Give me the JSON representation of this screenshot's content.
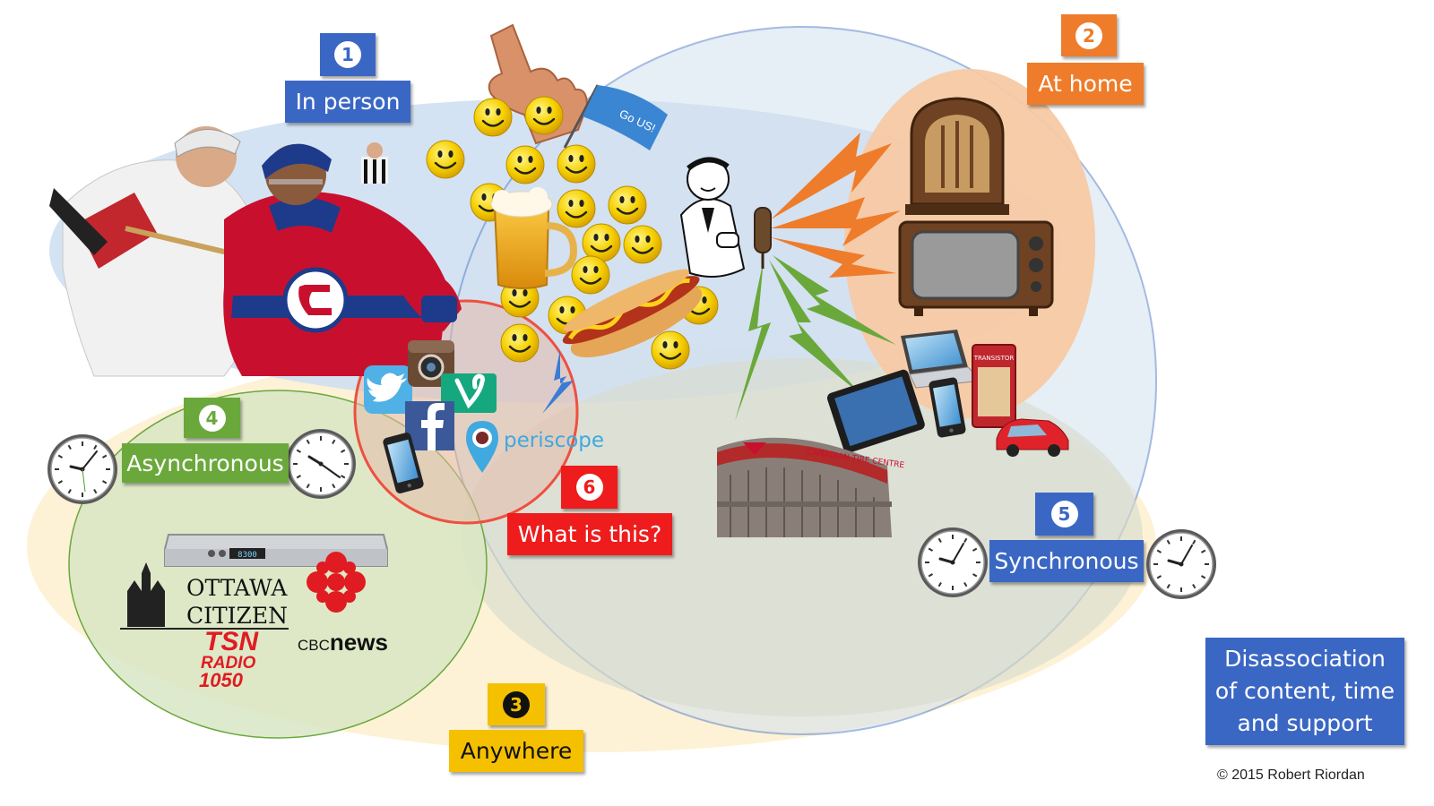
{
  "labels": {
    "in_person": {
      "number": "1",
      "text": "In person"
    },
    "at_home": {
      "number": "2",
      "text": "At home"
    },
    "anywhere": {
      "number": "3",
      "text": "Anywhere"
    },
    "asynchronous": {
      "number": "4",
      "text": "Asynchronous"
    },
    "synchronous": {
      "number": "5",
      "text": "Synchronous"
    },
    "what_is_this": {
      "number": "6",
      "text": "What is this?"
    }
  },
  "summary_box": "Disassociation of content, time and support",
  "copyright": "© 2015 Robert Riordan",
  "flag_text": "Go US!",
  "logos": {
    "periscope": "periscope",
    "ottawa_citizen_line1": "OTTAWA",
    "ottawa_citizen_line2": "CITIZEN",
    "cbc_news_prefix": "CBC",
    "cbc_news_suffix": "news",
    "tsn_line1": "TSN",
    "tsn_line2": "RADIO",
    "tsn_line3": "1050",
    "receiver_display": "8300",
    "arena_sign": "CANADIAN TIRE CENTRE",
    "radio_brand": "TRANSISTOR"
  },
  "colors": {
    "blue": "#3b67c4",
    "orange": "#ee7c2a",
    "green": "#6aa83b",
    "yellow": "#f5c000",
    "red": "#ee1c1c",
    "blue_area": "#cfe0f2",
    "orange_area": "#f7c9a4",
    "yellow_area": "#fdf1d2",
    "green_area": "#d8e6c4"
  },
  "icons": [
    "smiley-icon",
    "foam-finger-icon",
    "beer-mug-icon",
    "hot-dog-icon",
    "flag-icon",
    "clock-icon",
    "twitter-icon",
    "facebook-icon",
    "instagram-icon",
    "vine-icon",
    "periscope-icon",
    "smartphone-icon",
    "tablet-icon",
    "laptop-icon",
    "antique-radio-icon",
    "television-icon",
    "transistor-radio-icon",
    "car-icon",
    "cable-box-icon",
    "announcer-icon",
    "microphone-icon",
    "arena-icon",
    "hockey-players-image"
  ]
}
